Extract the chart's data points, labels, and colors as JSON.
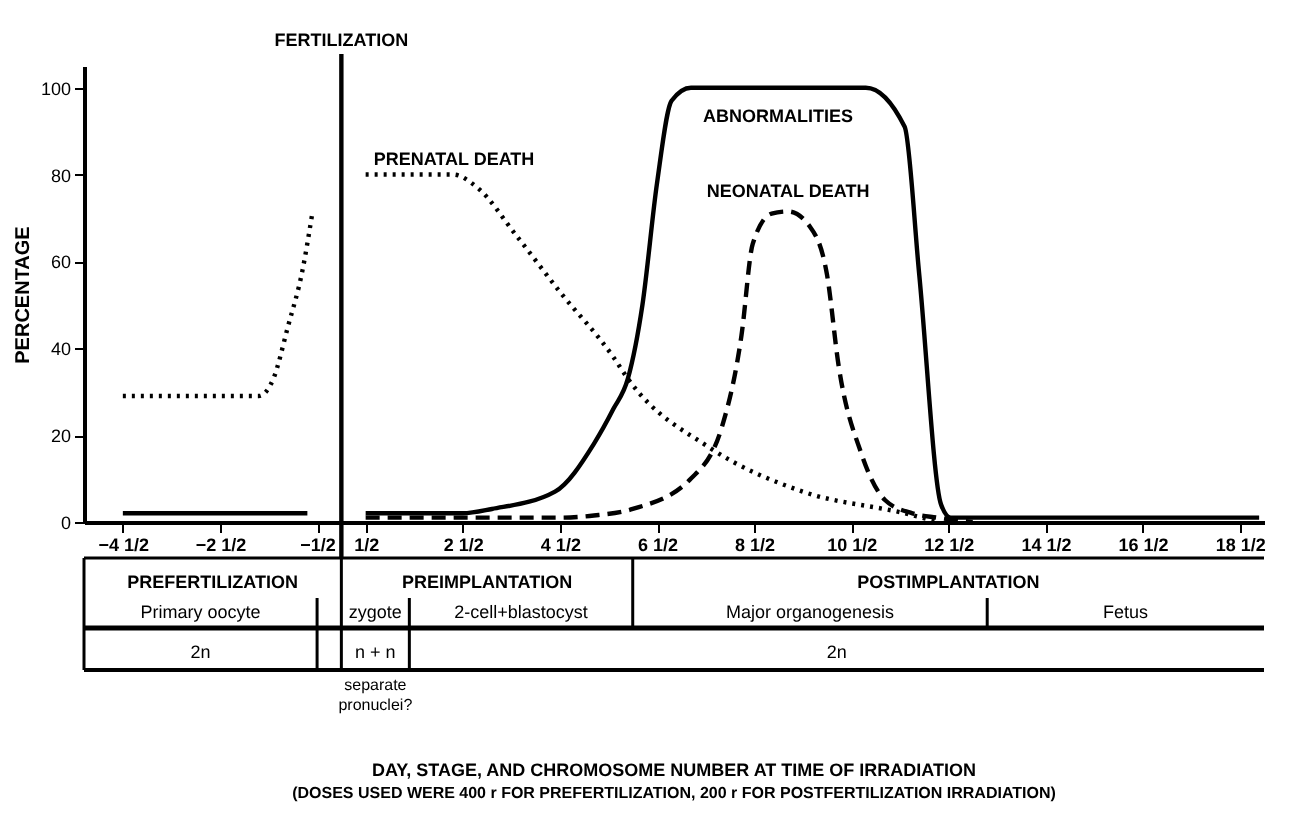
{
  "chart_data": {
    "type": "line",
    "ylabel": "PERCENTAGE",
    "xlim": [
      -5.3,
      19
    ],
    "ylim": [
      0,
      105
    ],
    "xticks": [
      {
        "value": -4.5,
        "label": "−4 1/2"
      },
      {
        "value": -2.5,
        "label": "−2 1/2"
      },
      {
        "value": -0.5,
        "label": "−1/2"
      },
      {
        "value": 0.5,
        "label": "1/2"
      },
      {
        "value": 2.5,
        "label": "2 1/2"
      },
      {
        "value": 4.5,
        "label": "4 1/2"
      },
      {
        "value": 6.5,
        "label": "6 1/2"
      },
      {
        "value": 8.5,
        "label": "8 1/2"
      },
      {
        "value": 10.5,
        "label": "10 1/2"
      },
      {
        "value": 12.5,
        "label": "12 1/2"
      },
      {
        "value": 14.5,
        "label": "14 1/2"
      },
      {
        "value": 16.5,
        "label": "16 1/2"
      },
      {
        "value": 18.5,
        "label": "18 1/2"
      }
    ],
    "yticks": [
      0,
      20,
      40,
      60,
      80,
      100
    ],
    "series": [
      {
        "name": "PRENATAL DEATH",
        "color": "#000000",
        "line_style": "dotted",
        "x": [
          -4.5,
          -1.7,
          -1.4,
          -1.1,
          -0.8,
          -0.6,
          0,
          0.5,
          2.3,
          2.8,
          3.6,
          4.5,
          5.6,
          5.9,
          7.6,
          9.5,
          11.6,
          12.3
        ],
        "values": [
          29,
          29,
          33,
          45,
          58,
          71,
          null,
          80,
          80,
          77,
          66,
          53,
          38,
          33,
          17,
          7,
          2,
          0
        ]
      },
      {
        "name": "ABNORMALITIES",
        "color": "#000000",
        "line_style": "solid",
        "x": [
          -4.5,
          -0.7,
          0,
          0.5,
          2.5,
          3.1,
          4.4,
          5.2,
          5.6,
          5.9,
          6.2,
          6.5,
          6.8,
          7.2,
          10.8,
          11.6,
          11.9,
          12.35,
          12.55,
          18.9
        ],
        "values": [
          2,
          2,
          null,
          2,
          2,
          3,
          7,
          18,
          26,
          33,
          50,
          78,
          97,
          100,
          100,
          91,
          57,
          4,
          1,
          1
        ]
      },
      {
        "name": "NEONATAL DEATH",
        "color": "#000000",
        "line_style": "dashed",
        "x": [
          0.5,
          4.5,
          5.2,
          6.0,
          7.2,
          7.84,
          8.24,
          8.47,
          8.86,
          9.2,
          9.65,
          10.0,
          10.24,
          10.7,
          11.2,
          11.76,
          12.27,
          13.0
        ],
        "values": [
          1,
          1,
          1.5,
          3,
          10,
          22,
          43,
          64,
          71,
          71.5,
          68,
          57,
          36,
          16,
          5,
          2,
          1,
          0
        ]
      }
    ],
    "ref_lines": [
      {
        "axis": "x",
        "value": 0,
        "label": "FERTILIZATION",
        "color": "#000000"
      }
    ],
    "annotations": [
      "PREFERTILIZATION",
      "PREIMPLANTATION",
      "POSTIMPLANTATION",
      "Primary oocyte",
      "zygote",
      "2-cell+blastocyst",
      "Major organogenesis",
      "Fetus",
      "2n",
      "n + n",
      "2n",
      "separate pronuclei?",
      "DAY, STAGE, AND CHROMOSOME NUMBER AT TIME OF IRRADIATION",
      "(DOSES USED WERE 400 r FOR PREFERTILIZATION, 200 r FOR POSTFERTILIZATION IRRADIATION)"
    ]
  }
}
